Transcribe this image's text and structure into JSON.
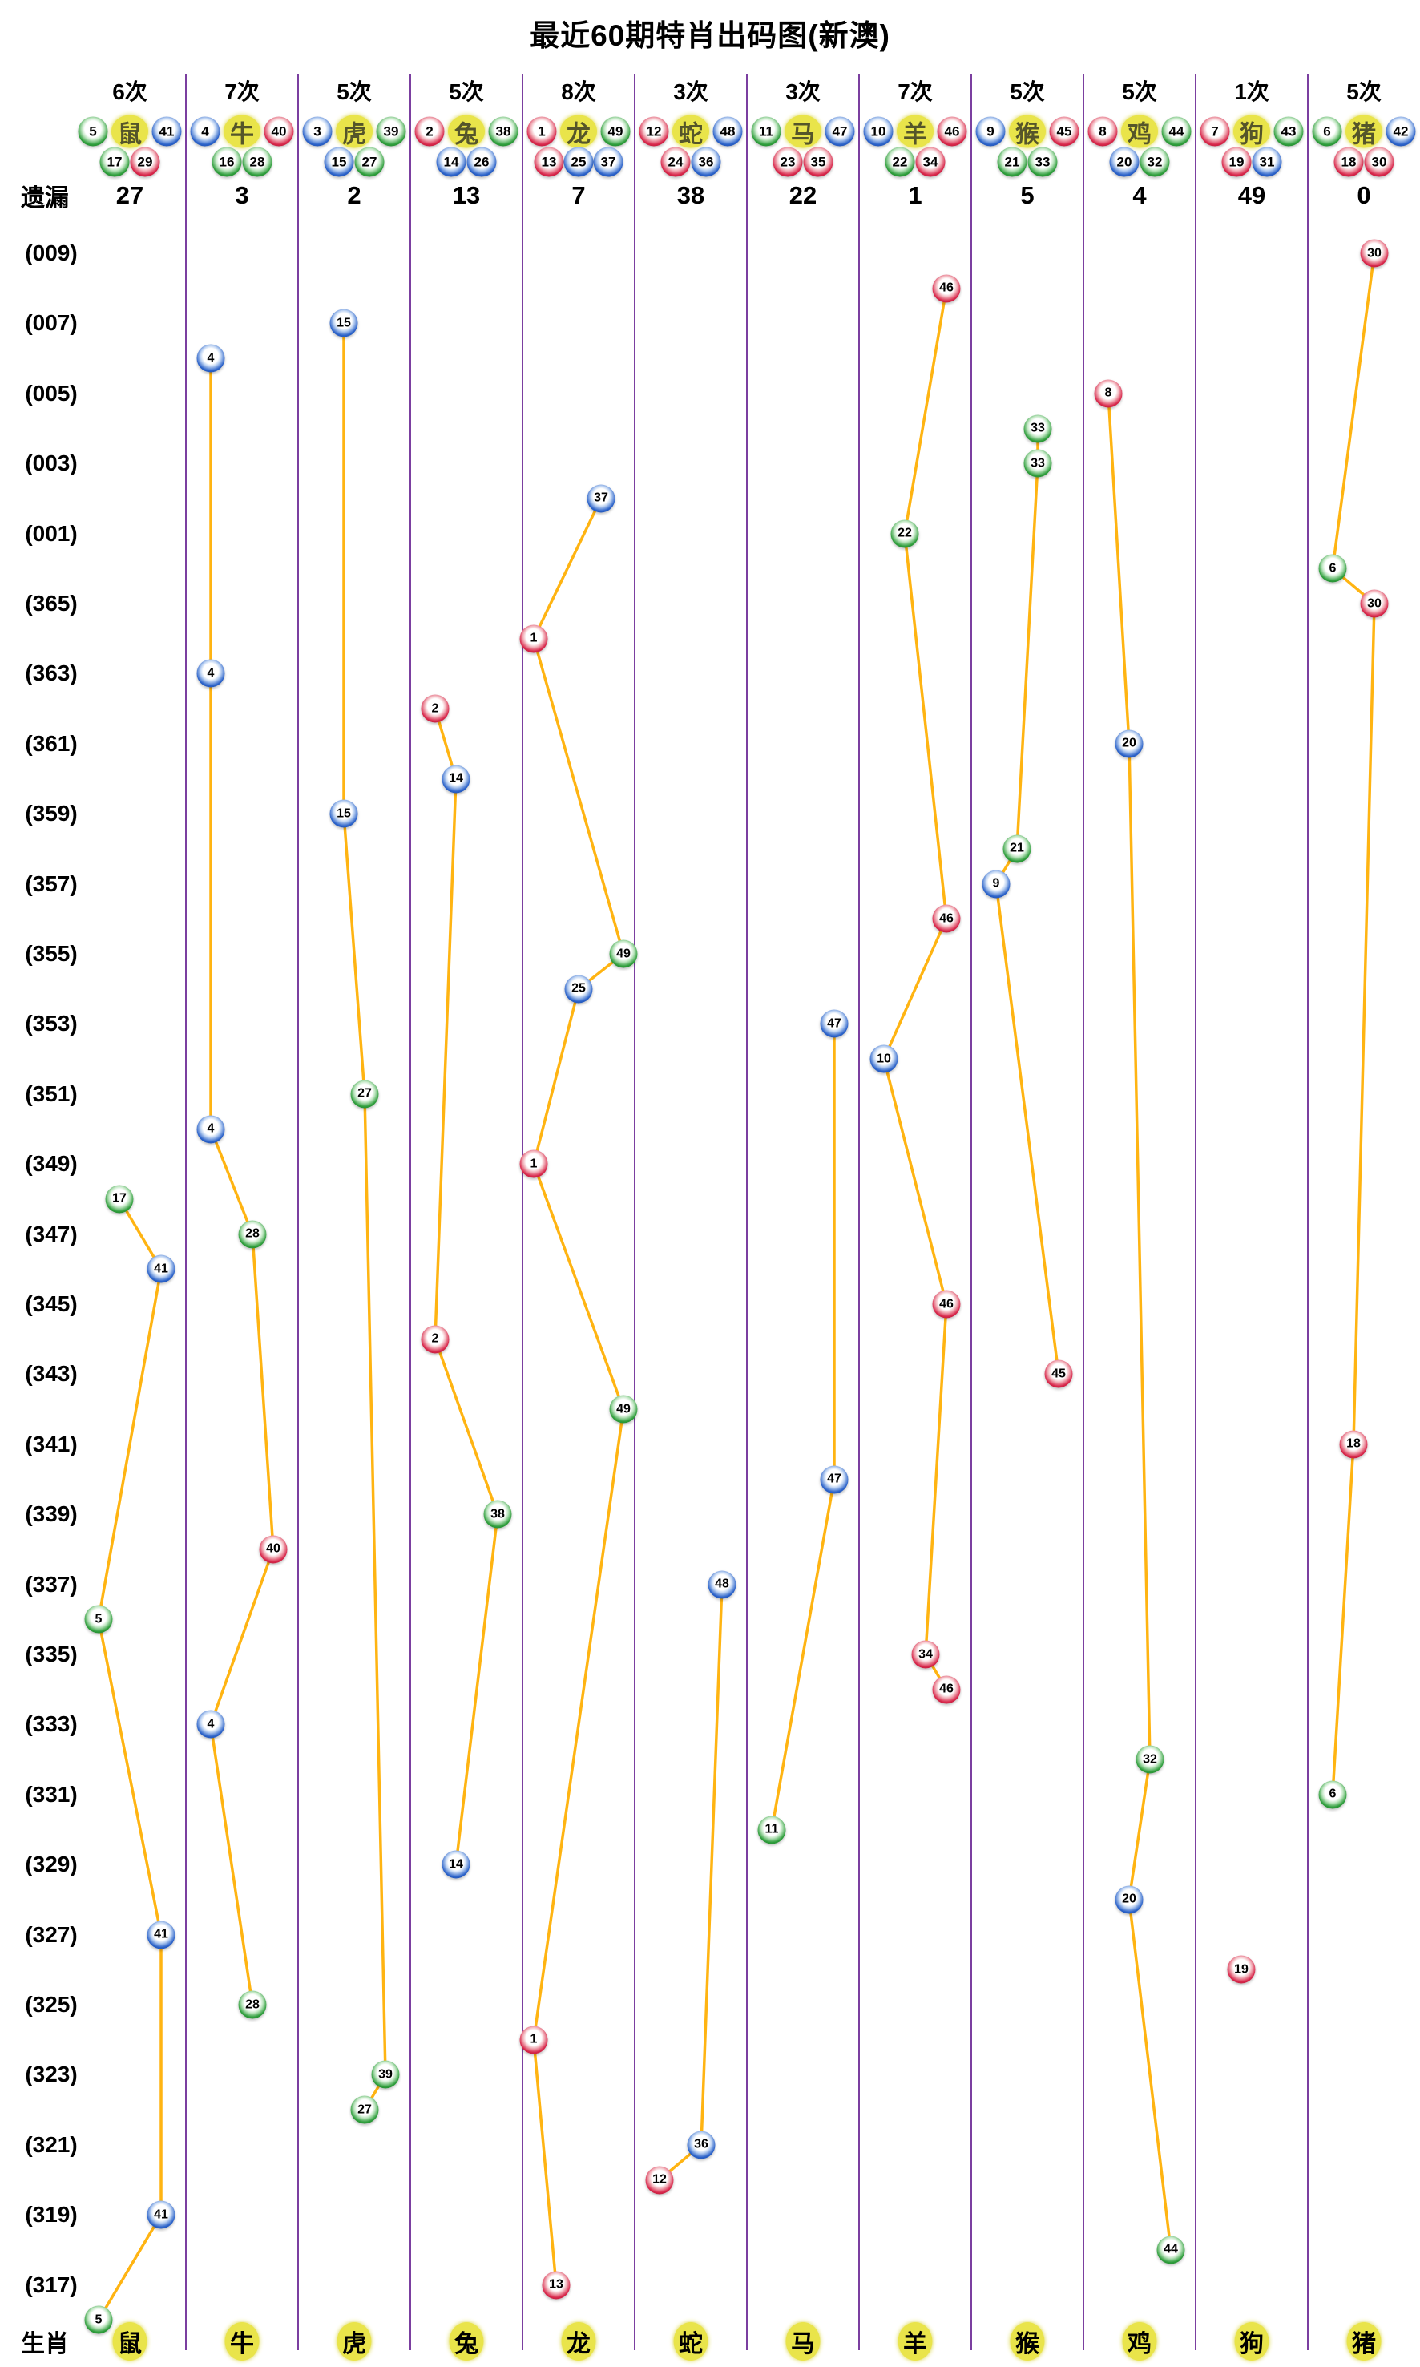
{
  "title": "最近60期特肖出码图(新澳)",
  "labels": {
    "miss": "遗漏",
    "zodiac": "生肖"
  },
  "period_labels": [
    "(009)",
    "(007)",
    "(005)",
    "(003)",
    "(001)",
    "(365)",
    "(363)",
    "(361)",
    "(359)",
    "(357)",
    "(355)",
    "(353)",
    "(351)",
    "(349)",
    "(347)",
    "(345)",
    "(343)",
    "(341)",
    "(339)",
    "(337)",
    "(335)",
    "(333)",
    "(331)",
    "(329)",
    "(327)",
    "(325)",
    "(323)",
    "(321)",
    "(319)",
    "(317)"
  ],
  "colors": {
    "red_ball": "#d8274b",
    "blue_ball": "#2b62c9",
    "green_ball": "#2f9e3c",
    "trend_line": "#ffb412",
    "separator": "#7b3fa0",
    "badge_bg": "#e9e44a"
  },
  "number_colors": {
    "red": [
      1,
      2,
      7,
      8,
      12,
      13,
      18,
      19,
      23,
      24,
      29,
      30,
      34,
      35,
      40,
      45,
      46
    ],
    "blue": [
      3,
      4,
      9,
      10,
      14,
      15,
      20,
      25,
      26,
      31,
      36,
      37,
      41,
      42,
      47,
      48
    ],
    "green": [
      5,
      6,
      11,
      16,
      17,
      21,
      22,
      27,
      28,
      32,
      33,
      38,
      39,
      43,
      44,
      49
    ]
  },
  "chart_data": {
    "type": "scatter",
    "title": "最近60期特肖出码图(新澳)",
    "rows": 60,
    "row_label_step": 2,
    "y_tick_labels": [
      "(009)",
      "(007)",
      "(005)",
      "(003)",
      "(001)",
      "(365)",
      "(363)",
      "(361)",
      "(359)",
      "(357)",
      "(355)",
      "(353)",
      "(351)",
      "(349)",
      "(347)",
      "(345)",
      "(343)",
      "(341)",
      "(339)",
      "(337)",
      "(335)",
      "(333)",
      "(331)",
      "(329)",
      "(327)",
      "(325)",
      "(323)",
      "(321)",
      "(319)",
      "(317)"
    ],
    "legend": "each column = zodiac; each row = one draw period (top = most recent); ball = winning special number of that zodiac",
    "columns": [
      {
        "zodiac": "鼠",
        "count": "6次",
        "miss": "27",
        "numbers": [
          5,
          17,
          29,
          41
        ],
        "header_row1": [
          5,
          41
        ],
        "header_row2": [
          17,
          29
        ],
        "points": [
          [
            27,
            17
          ],
          [
            29,
            41
          ],
          [
            39,
            5
          ],
          [
            48,
            41
          ],
          [
            56,
            41
          ],
          [
            59,
            5
          ]
        ]
      },
      {
        "zodiac": "牛",
        "count": "7次",
        "miss": "3",
        "numbers": [
          4,
          16,
          28,
          40
        ],
        "header_row1": [
          4,
          40
        ],
        "header_row2": [
          16,
          28
        ],
        "points": [
          [
            3,
            4
          ],
          [
            12,
            4
          ],
          [
            25,
            4
          ],
          [
            28,
            28
          ],
          [
            37,
            40
          ],
          [
            42,
            4
          ],
          [
            50,
            28
          ]
        ]
      },
      {
        "zodiac": "虎",
        "count": "5次",
        "miss": "2",
        "numbers": [
          3,
          15,
          27,
          39
        ],
        "header_row1": [
          3,
          39
        ],
        "header_row2": [
          15,
          27
        ],
        "points": [
          [
            2,
            15
          ],
          [
            16,
            15
          ],
          [
            24,
            27
          ],
          [
            52,
            39
          ],
          [
            53,
            27
          ]
        ]
      },
      {
        "zodiac": "兔",
        "count": "5次",
        "miss": "13",
        "numbers": [
          2,
          14,
          26,
          38
        ],
        "header_row1": [
          2,
          38
        ],
        "header_row2": [
          14,
          26
        ],
        "points": [
          [
            13,
            2
          ],
          [
            15,
            14
          ],
          [
            31,
            2
          ],
          [
            36,
            38
          ],
          [
            46,
            14
          ]
        ]
      },
      {
        "zodiac": "龙",
        "count": "8次",
        "miss": "7",
        "numbers": [
          1,
          13,
          25,
          37,
          49
        ],
        "header_row1": [
          1,
          49
        ],
        "header_row2": [
          13,
          25,
          37
        ],
        "points": [
          [
            7,
            37
          ],
          [
            11,
            1
          ],
          [
            20,
            49
          ],
          [
            21,
            25
          ],
          [
            26,
            1
          ],
          [
            33,
            49
          ],
          [
            51,
            1
          ],
          [
            58,
            13
          ]
        ]
      },
      {
        "zodiac": "蛇",
        "count": "3次",
        "miss": "38",
        "numbers": [
          12,
          24,
          36,
          48
        ],
        "header_row1": [
          12,
          48
        ],
        "header_row2": [
          24,
          36
        ],
        "points": [
          [
            38,
            48
          ],
          [
            54,
            36
          ],
          [
            55,
            12
          ]
        ]
      },
      {
        "zodiac": "马",
        "count": "3次",
        "miss": "22",
        "numbers": [
          11,
          23,
          35,
          47
        ],
        "header_row1": [
          11,
          47
        ],
        "header_row2": [
          23,
          35
        ],
        "points": [
          [
            22,
            47
          ],
          [
            35,
            47
          ],
          [
            45,
            11
          ]
        ]
      },
      {
        "zodiac": "羊",
        "count": "7次",
        "miss": "1",
        "numbers": [
          10,
          22,
          34,
          46
        ],
        "header_row1": [
          10,
          46
        ],
        "header_row2": [
          22,
          34
        ],
        "points": [
          [
            1,
            46
          ],
          [
            8,
            22
          ],
          [
            19,
            46
          ],
          [
            23,
            10
          ],
          [
            30,
            46
          ],
          [
            40,
            34
          ],
          [
            41,
            46
          ]
        ]
      },
      {
        "zodiac": "猴",
        "count": "5次",
        "miss": "5",
        "numbers": [
          9,
          21,
          33,
          45
        ],
        "header_row1": [
          9,
          45
        ],
        "header_row2": [
          21,
          33
        ],
        "points": [
          [
            5,
            33
          ],
          [
            6,
            33
          ],
          [
            17,
            21
          ],
          [
            18,
            9
          ],
          [
            32,
            45
          ]
        ]
      },
      {
        "zodiac": "鸡",
        "count": "5次",
        "miss": "4",
        "numbers": [
          8,
          20,
          32,
          44
        ],
        "header_row1": [
          8,
          44
        ],
        "header_row2": [
          20,
          32
        ],
        "points": [
          [
            4,
            8
          ],
          [
            14,
            20
          ],
          [
            43,
            32
          ],
          [
            47,
            20
          ],
          [
            57,
            44
          ]
        ]
      },
      {
        "zodiac": "狗",
        "count": "1次",
        "miss": "49",
        "numbers": [
          7,
          19,
          31,
          43
        ],
        "header_row1": [
          7,
          43
        ],
        "header_row2": [
          19,
          31
        ],
        "points": [
          [
            49,
            19
          ]
        ]
      },
      {
        "zodiac": "猪",
        "count": "5次",
        "miss": "0",
        "numbers": [
          6,
          18,
          30,
          42
        ],
        "header_row1": [
          6,
          42
        ],
        "header_row2": [
          18,
          30
        ],
        "points": [
          [
            0,
            30
          ],
          [
            9,
            6
          ],
          [
            10,
            30
          ],
          [
            34,
            18
          ],
          [
            44,
            6
          ]
        ]
      }
    ]
  }
}
